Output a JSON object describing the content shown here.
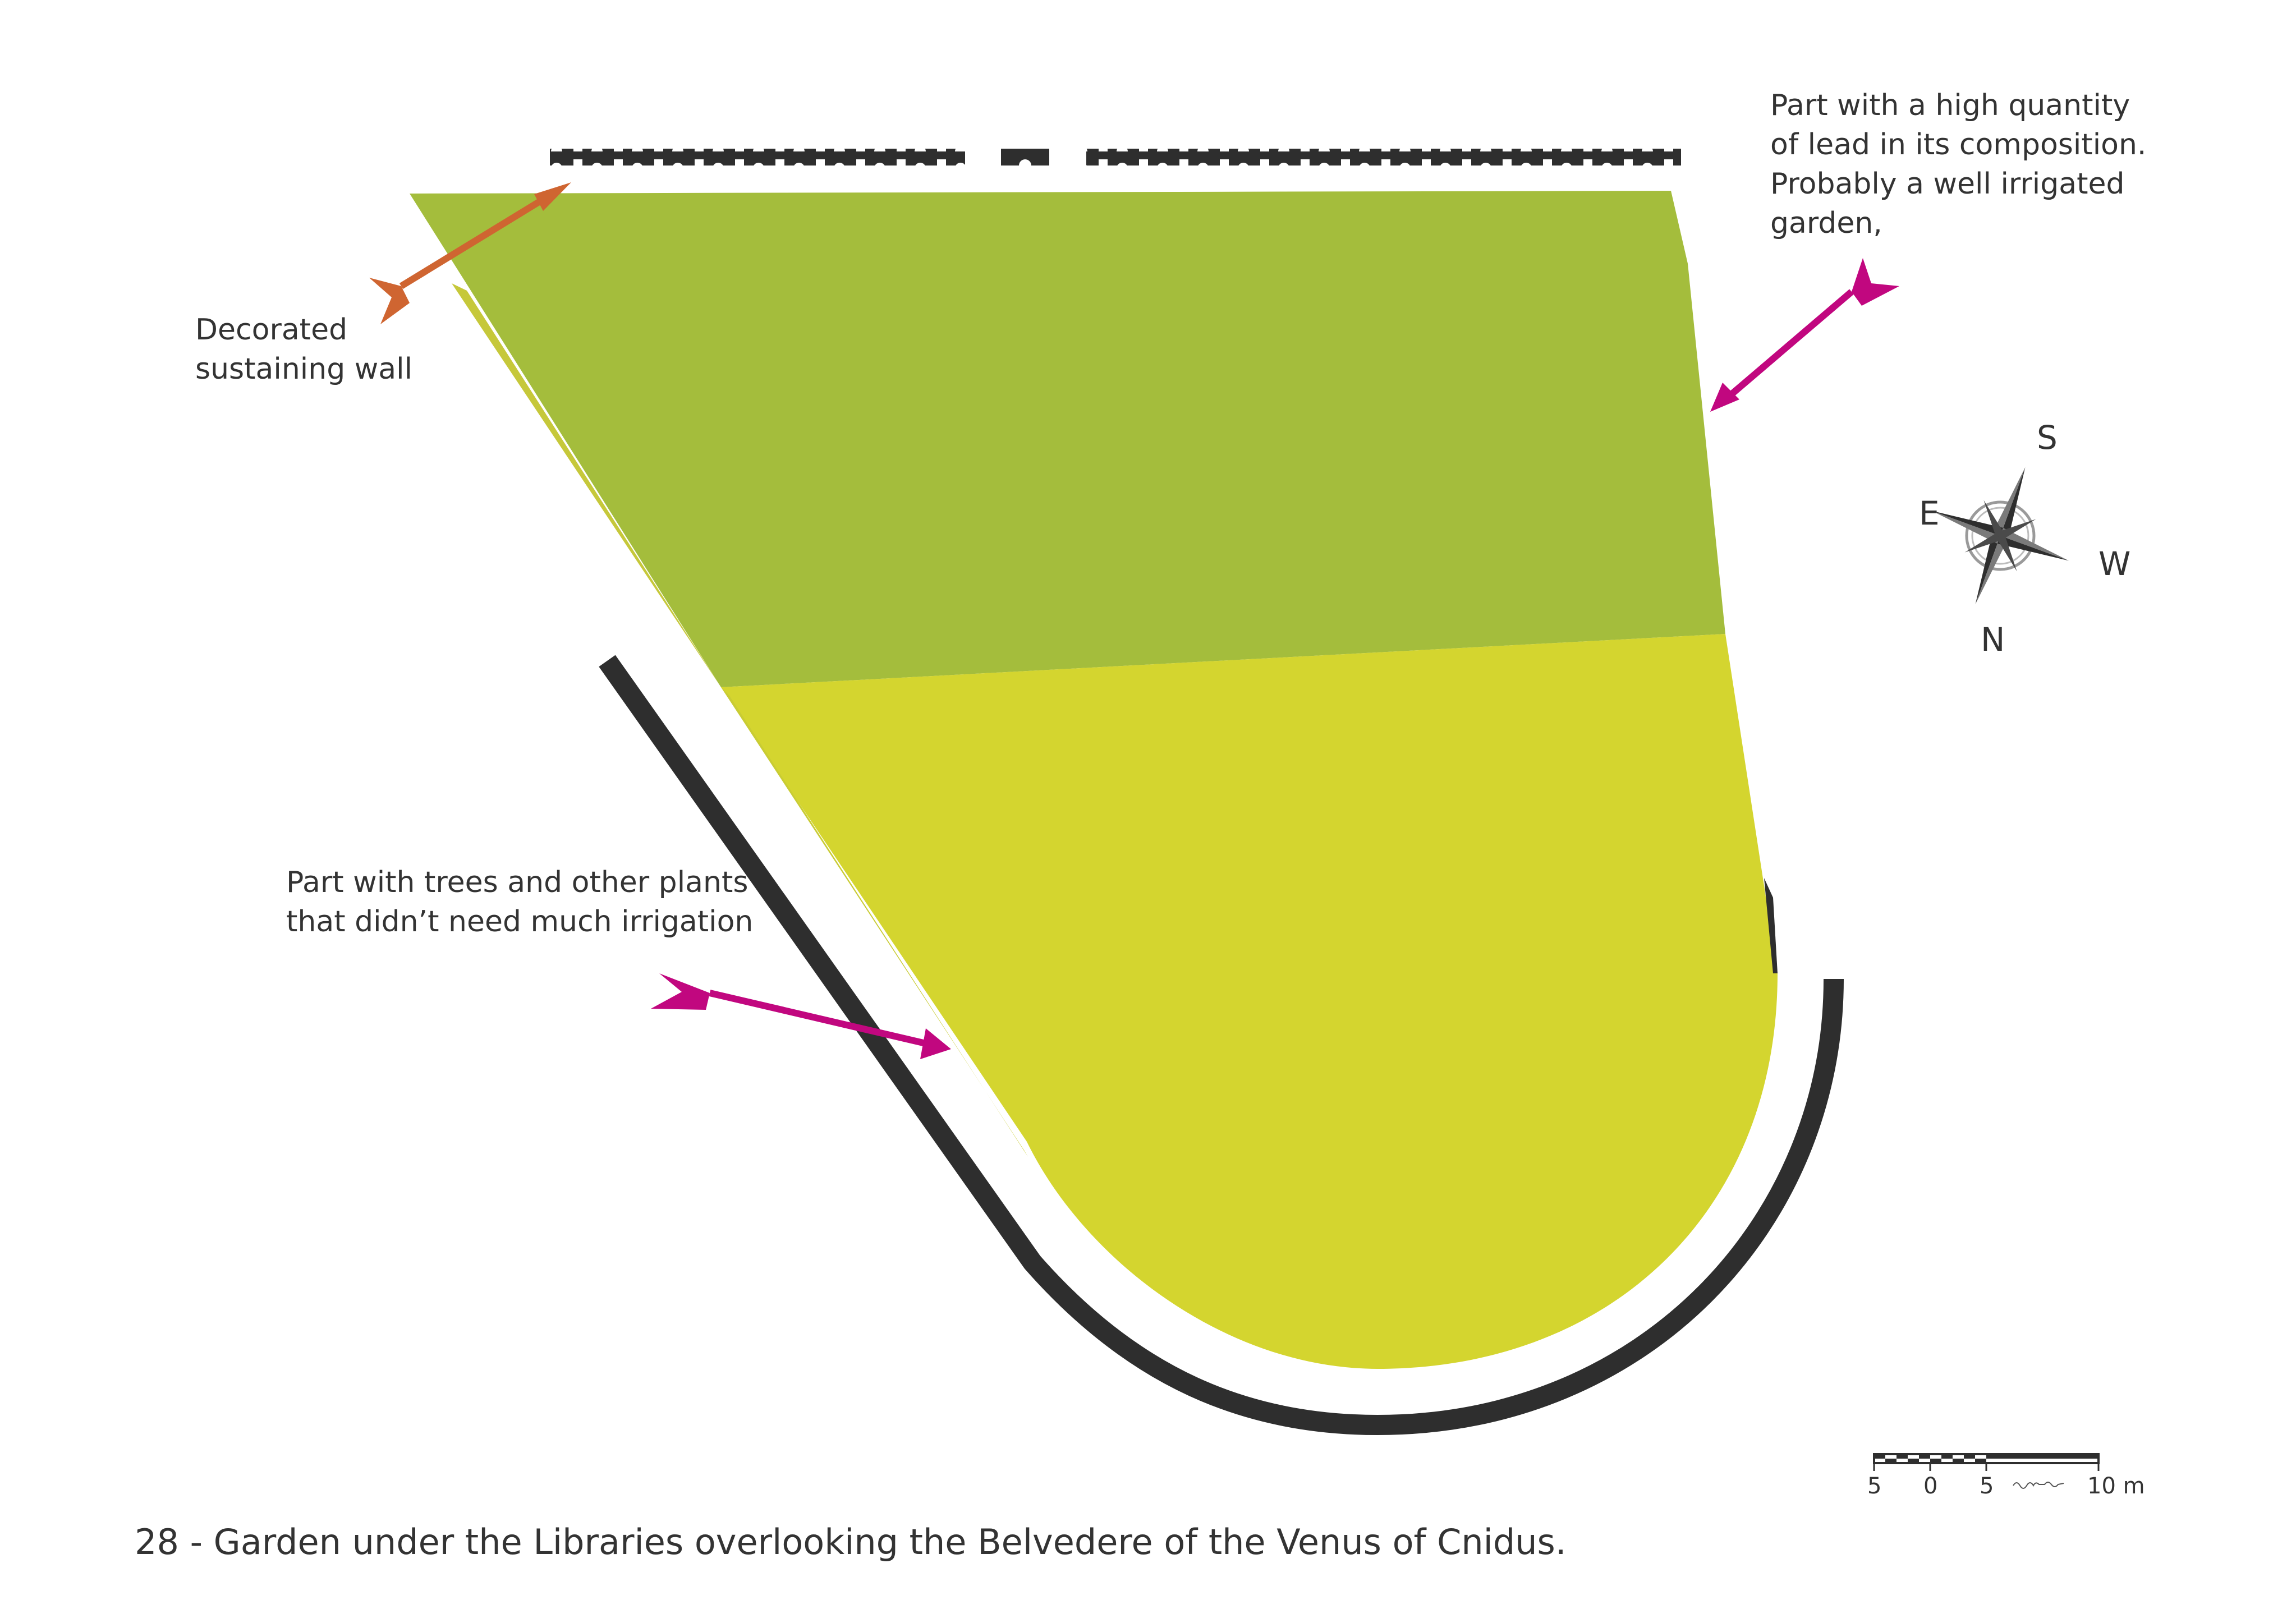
{
  "caption": "28 - Garden under the Libraries overlooking the Belvedere of the Venus of  Cnidus.",
  "annotations": {
    "decorated_wall": [
      "Decorated",
      "sustaining wall"
    ],
    "lead_part": [
      "Part with a high quantity",
      "of lead in its composition.",
      "Probably a well irrigated",
      "garden,"
    ],
    "trees_part": [
      "Part with trees and other plants",
      "that didn’t need much irrigation"
    ]
  },
  "compass": {
    "S": "S",
    "E": "E",
    "W": "W",
    "N": "N"
  },
  "scale_bar": {
    "ticks": [
      "5",
      "0",
      "5",
      "10 m"
    ]
  },
  "colors": {
    "upper_garden": "#a4bd3c",
    "lower_garden": "#d4d52f",
    "wall": "#2e2e2e",
    "arrow_orange": "#cf6531",
    "arrow_magenta": "#c1077f",
    "text": "#333333"
  }
}
